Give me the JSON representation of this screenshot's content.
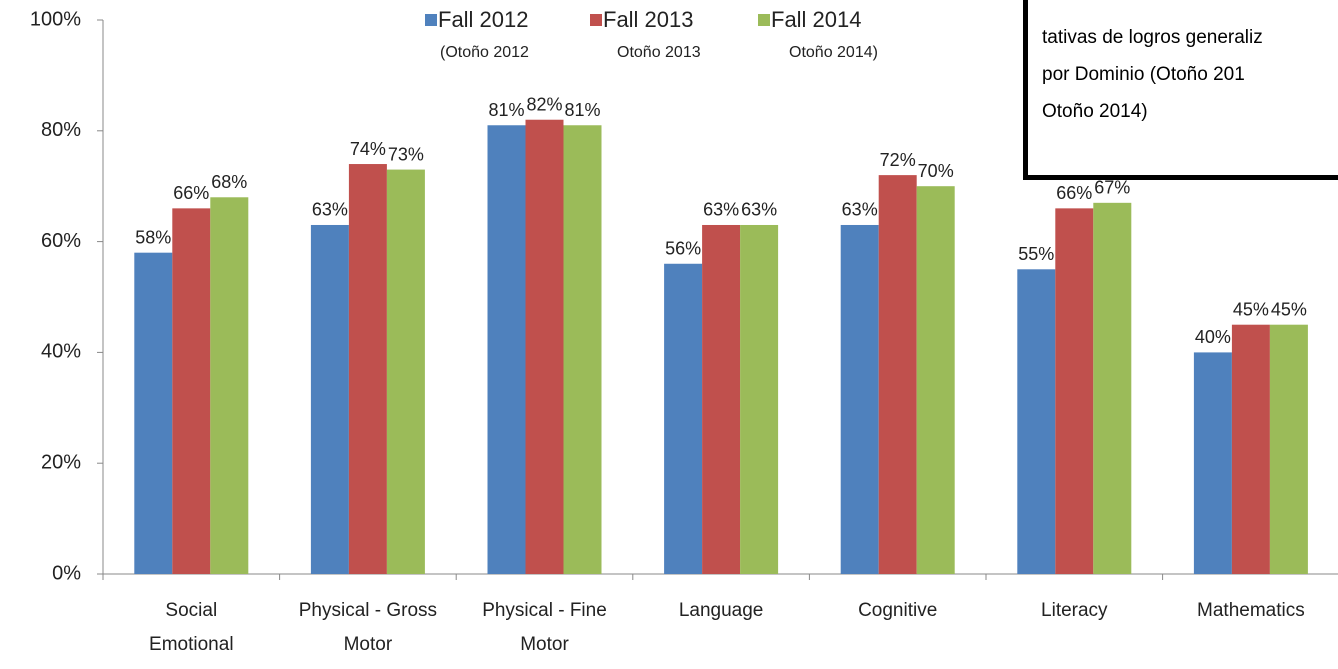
{
  "chart_data": {
    "type": "bar",
    "categories": [
      "Social Emotional",
      "Physical - Gross Motor",
      "Physical - Fine Motor",
      "Language",
      "Cognitive",
      "Literacy",
      "Mathematics"
    ],
    "series": [
      {
        "name": "Fall 2012",
        "color": "#4f81bd",
        "values": [
          58,
          63,
          81,
          56,
          63,
          55,
          40
        ],
        "value_labels": [
          "58%",
          "63%",
          "81%",
          "56%",
          "63%",
          "55%",
          "40%"
        ]
      },
      {
        "name": "Fall 2013",
        "color": "#c0504d",
        "values": [
          66,
          74,
          82,
          63,
          72,
          66,
          45
        ],
        "value_labels": [
          "66%",
          "74%",
          "82%",
          "63%",
          "72%",
          "66%",
          "45%"
        ]
      },
      {
        "name": "Fall 2014",
        "color": "#9bbb59",
        "values": [
          68,
          73,
          81,
          63,
          70,
          67,
          45
        ],
        "value_labels": [
          "68%",
          "73%",
          "81%",
          "63%",
          "70%",
          "67%",
          "45%"
        ]
      }
    ],
    "legend_notes": [
      "(Otoño  2012",
      "Otoño 2013",
      "Otoño 2014)"
    ],
    "annotation": [
      "tativas de logros generaliz",
      "por Dominio (Otoño  201",
      "Otoño 2014)"
    ],
    "ylim": [
      0,
      100
    ],
    "yticks": [
      {
        "value": 0,
        "label": "0%"
      },
      {
        "value": 20,
        "label": "20%"
      },
      {
        "value": 40,
        "label": "40%"
      },
      {
        "value": 60,
        "label": "60%"
      },
      {
        "value": 80,
        "label": "80%"
      },
      {
        "value": 100,
        "label": "100%"
      }
    ],
    "grid": false,
    "legend": "top"
  }
}
